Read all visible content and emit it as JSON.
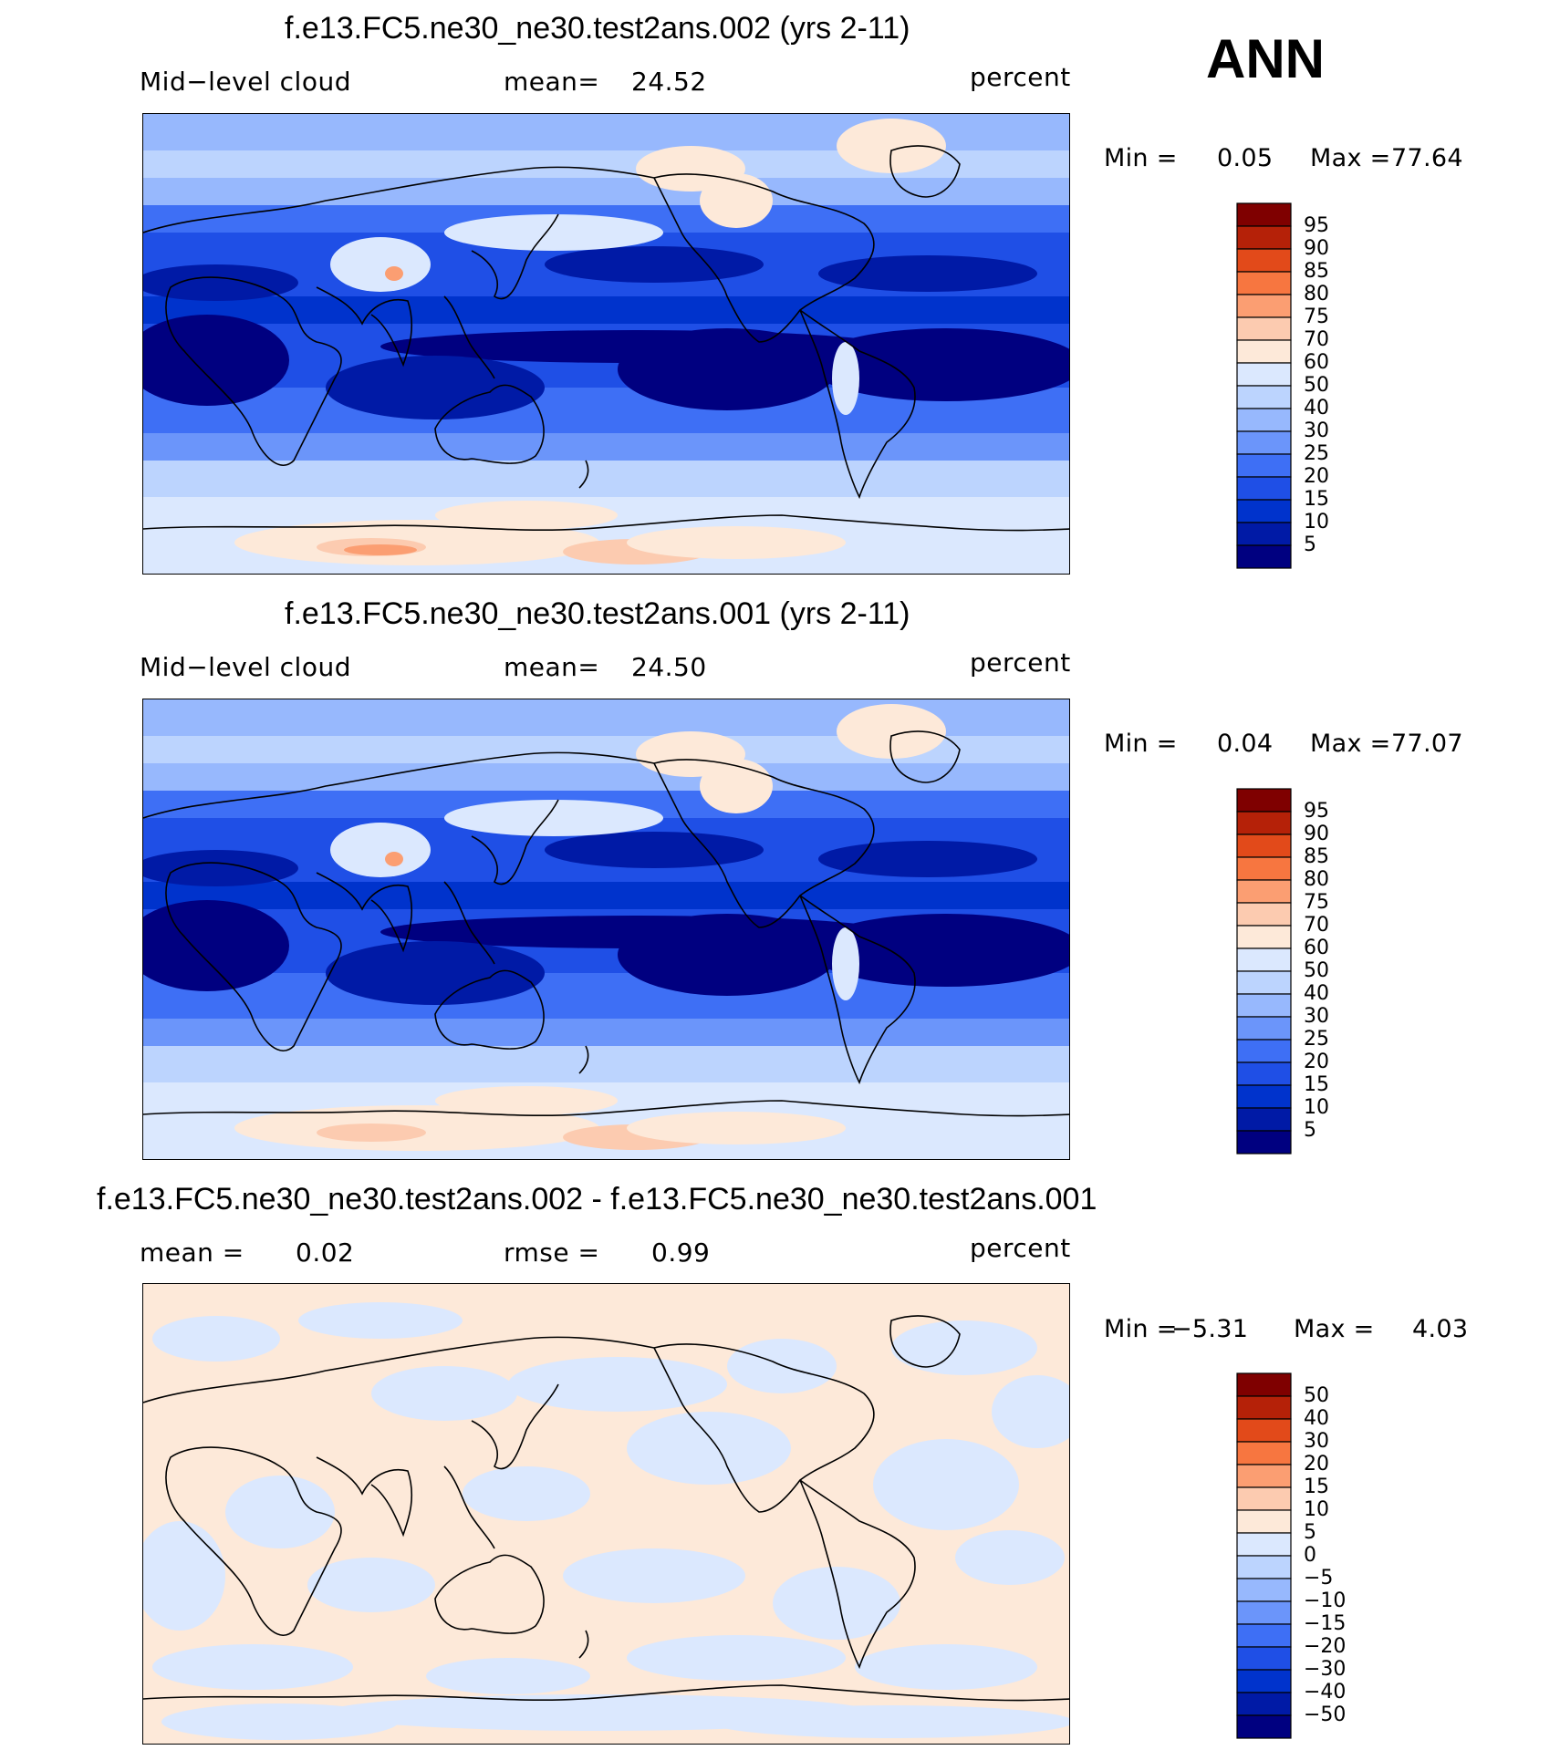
{
  "page": {
    "season": "ANN"
  },
  "colors": {
    "abs_levels": [
      "#000080",
      "#001aa6",
      "#0033cc",
      "#1f4fe6",
      "#3e6ff5",
      "#6b95fa",
      "#97b8fd",
      "#bcd4fe",
      "#dbe8fe",
      "#fde9d9",
      "#fccbb0",
      "#fb9e72",
      "#f77640",
      "#e24a1a",
      "#b52108",
      "#7f0000"
    ],
    "diff_levels": [
      "#000080",
      "#001aa6",
      "#0033cc",
      "#1f4fe6",
      "#3e6ff5",
      "#6b95fa",
      "#97b8fd",
      "#bcd4fe",
      "#dbe8fe",
      "#fde9d9",
      "#fccbb0",
      "#fb9e72",
      "#f77640",
      "#e24a1a",
      "#b52108",
      "#7f0000"
    ]
  },
  "panels": [
    {
      "title": "f.e13.FC5.ne30_ne30.test2ans.002 (yrs 2-11)",
      "left_label": "Mid−level cloud",
      "center_label": "mean=",
      "center_value": "24.52",
      "units": "percent",
      "min_label": "Min =",
      "min_value": "0.05",
      "max_label": "Max =",
      "max_value": "77.64",
      "colorbar": [
        "95",
        "90",
        "85",
        "80",
        "75",
        "70",
        "60",
        "50",
        "40",
        "30",
        "25",
        "20",
        "15",
        "10",
        "5"
      ]
    },
    {
      "title": "f.e13.FC5.ne30_ne30.test2ans.001 (yrs 2-11)",
      "left_label": "Mid−level cloud",
      "center_label": "mean=",
      "center_value": "24.50",
      "units": "percent",
      "min_label": "Min =",
      "min_value": "0.04",
      "max_label": "Max =",
      "max_value": "77.07",
      "colorbar": [
        "95",
        "90",
        "85",
        "80",
        "75",
        "70",
        "60",
        "50",
        "40",
        "30",
        "25",
        "20",
        "15",
        "10",
        "5"
      ]
    },
    {
      "title": "f.e13.FC5.ne30_ne30.test2ans.002 - f.e13.FC5.ne30_ne30.test2ans.001",
      "left_label": "mean =",
      "left_value": "0.02",
      "center_label": "rmse =",
      "center_value": "0.99",
      "units": "percent",
      "min_label": "Min =",
      "min_value": "−5.31",
      "max_label": "Max =",
      "max_value": "4.03",
      "colorbar": [
        "50",
        "40",
        "30",
        "20",
        "15",
        "10",
        "5",
        "0",
        "−5",
        "−10",
        "−15",
        "−20",
        "−30",
        "−40",
        "−50"
      ]
    }
  ]
}
